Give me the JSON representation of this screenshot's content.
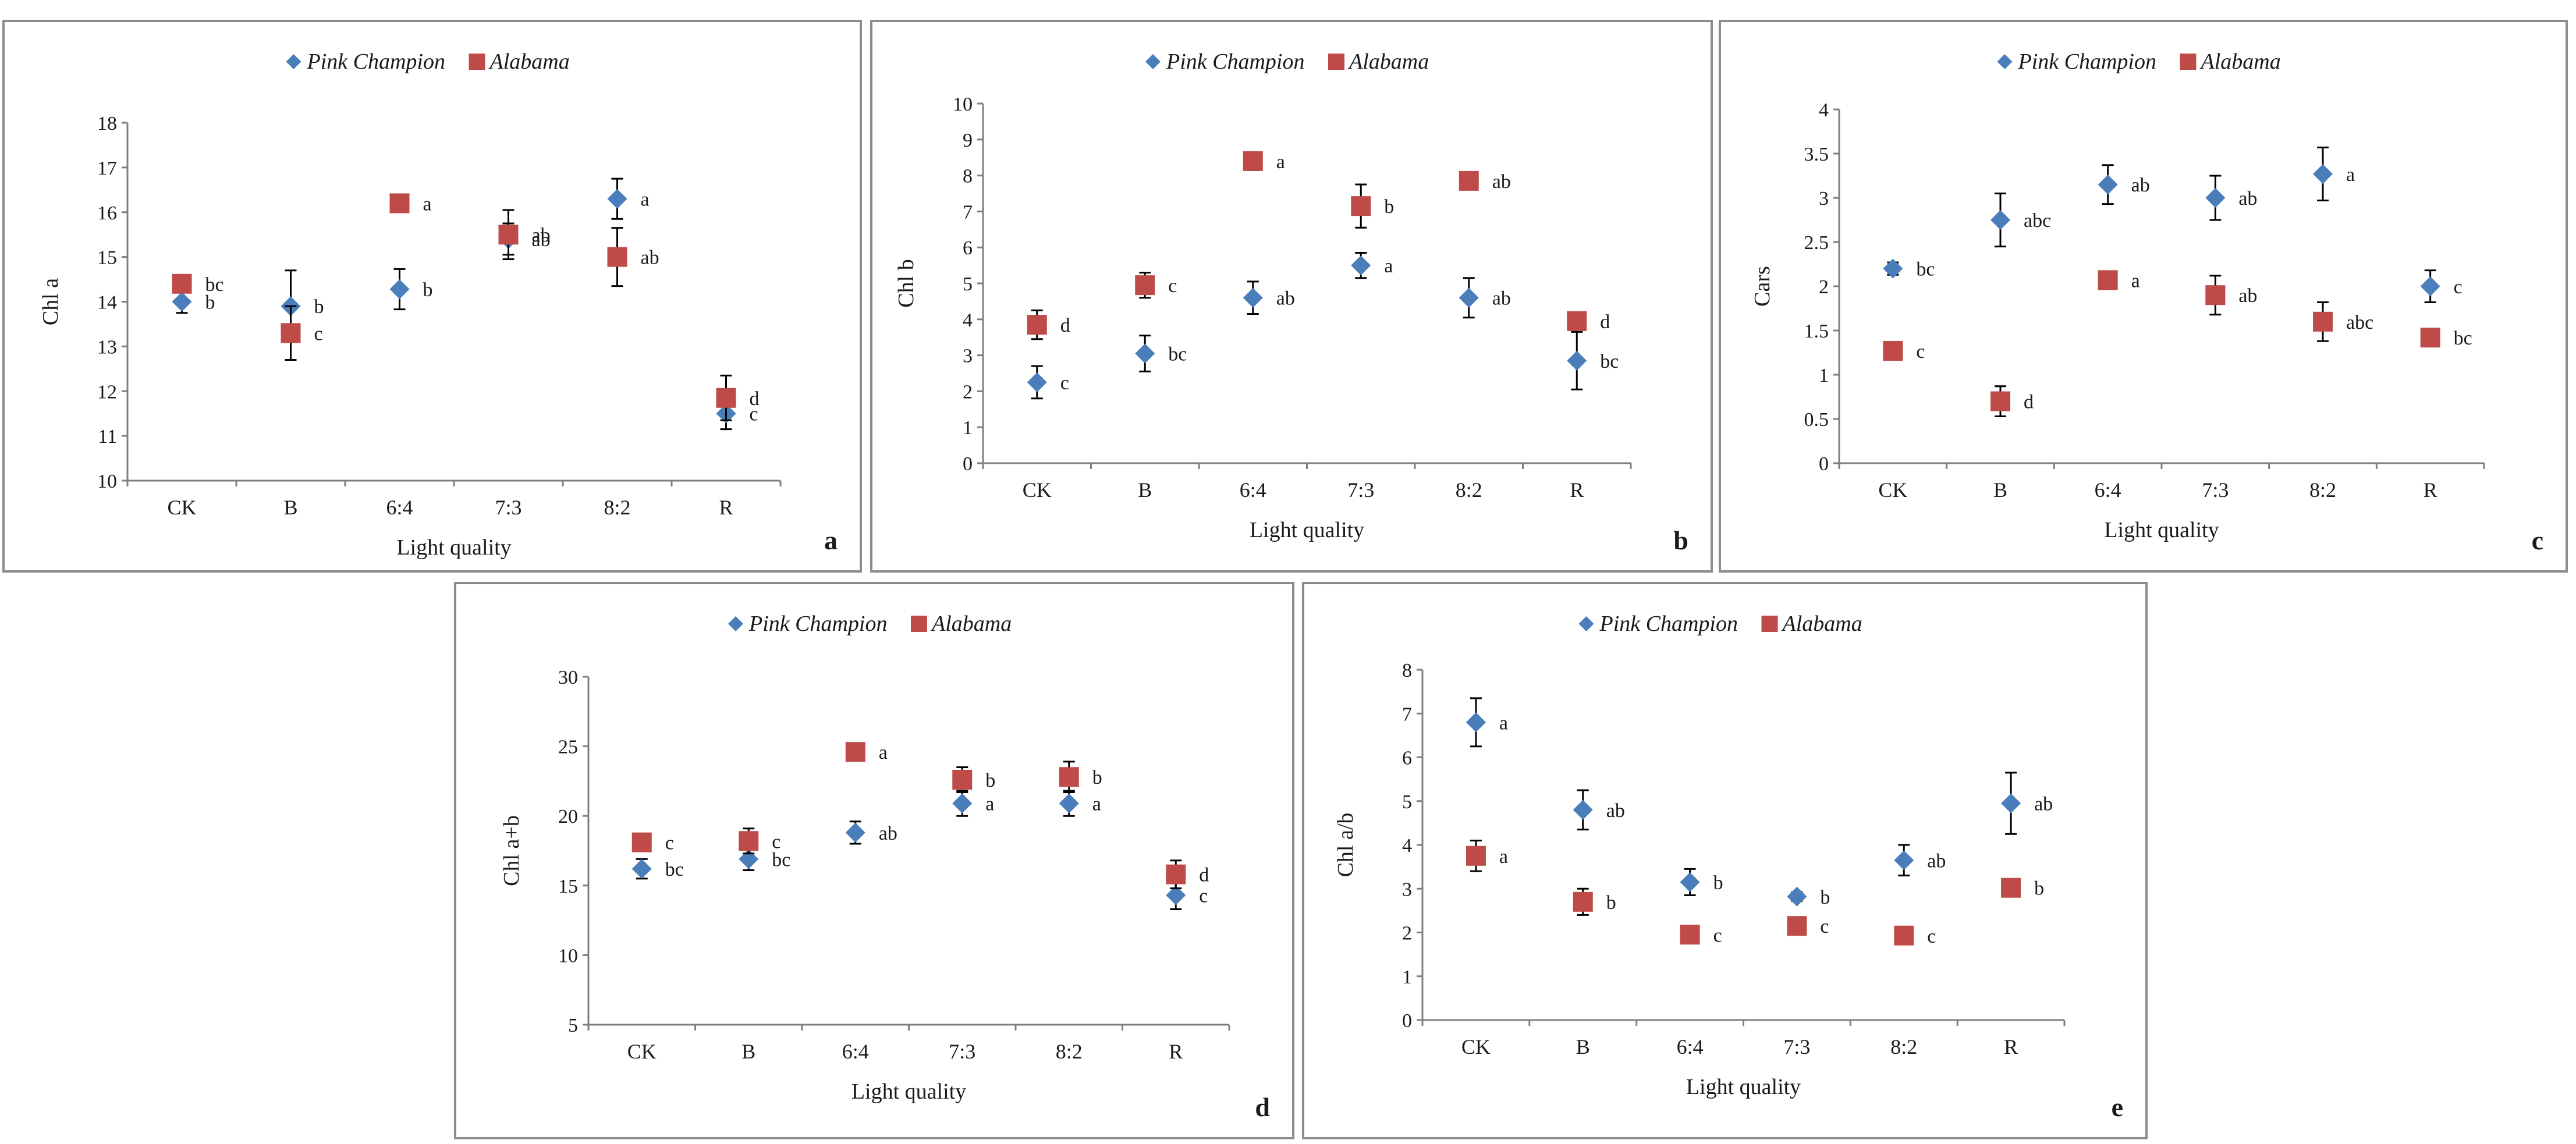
{
  "legend": {
    "series1": "Pink Champion",
    "series2": "Alabama"
  },
  "colors": {
    "series1": "#4a7ebb",
    "series2": "#be4b48",
    "axis": "#7f7f7f",
    "text": "#1a1a1a"
  },
  "chart_data": [
    {
      "type": "scatter",
      "panel": "a",
      "xlabel": "Light quality",
      "ylabel": "Chl a",
      "categories": [
        "CK",
        "B",
        "6:4",
        "7:3",
        "8:2",
        "R"
      ],
      "ylim": [
        10,
        18
      ],
      "yticks": [
        10,
        11,
        12,
        13,
        14,
        15,
        16,
        17,
        18
      ],
      "series": [
        {
          "name": "Pink Champion",
          "values": [
            14.0,
            13.9,
            14.28,
            15.4,
            16.3,
            11.5
          ],
          "errors": [
            0.25,
            0.8,
            0.45,
            0.35,
            0.45,
            0.35
          ],
          "letters": [
            "b",
            "b",
            "b",
            "ab",
            "a",
            "c"
          ]
        },
        {
          "name": "Alabama",
          "values": [
            14.4,
            13.3,
            16.2,
            15.5,
            15.0,
            11.85
          ],
          "errors": [
            0.12,
            0.6,
            0.1,
            0.55,
            0.65,
            0.5
          ],
          "letters": [
            "bc",
            "c",
            "a",
            "ab",
            "ab",
            "d"
          ]
        }
      ]
    },
    {
      "type": "scatter",
      "panel": "b",
      "xlabel": "Light quality",
      "ylabel": "Chl b",
      "categories": [
        "CK",
        "B",
        "6:4",
        "7:3",
        "8:2",
        "R"
      ],
      "ylim": [
        0,
        10
      ],
      "yticks": [
        0,
        1,
        2,
        3,
        4,
        5,
        6,
        7,
        8,
        9,
        10
      ],
      "series": [
        {
          "name": "Pink Champion",
          "values": [
            2.25,
            3.05,
            4.6,
            5.5,
            4.6,
            2.85
          ],
          "errors": [
            0.45,
            0.5,
            0.45,
            0.35,
            0.55,
            0.8
          ],
          "letters": [
            "c",
            "bc",
            "ab",
            "a",
            "ab",
            "bc"
          ]
        },
        {
          "name": "Alabama",
          "values": [
            3.85,
            4.95,
            8.4,
            7.15,
            7.85,
            3.95
          ],
          "errors": [
            0.4,
            0.35,
            0.25,
            0.6,
            0.2,
            0.25
          ],
          "letters": [
            "d",
            "c",
            "a",
            "b",
            "ab",
            "d"
          ]
        }
      ]
    },
    {
      "type": "scatter",
      "panel": "c",
      "xlabel": "Light quality",
      "ylabel": "Cars",
      "categories": [
        "CK",
        "B",
        "6:4",
        "7:3",
        "8:2",
        "R"
      ],
      "ylim": [
        0,
        4
      ],
      "yticks": [
        0,
        0.5,
        1,
        1.5,
        2,
        2.5,
        3,
        3.5,
        4
      ],
      "series": [
        {
          "name": "Pink Champion",
          "values": [
            2.2,
            2.75,
            3.15,
            3.0,
            3.27,
            2.0
          ],
          "errors": [
            0.07,
            0.3,
            0.22,
            0.25,
            0.3,
            0.18
          ],
          "letters": [
            "bc",
            "abc",
            "ab",
            "ab",
            "a",
            "c"
          ]
        },
        {
          "name": "Alabama",
          "values": [
            1.27,
            0.7,
            2.07,
            1.9,
            1.6,
            1.42
          ],
          "errors": [
            0.04,
            0.17,
            0.04,
            0.22,
            0.22,
            0.08
          ],
          "letters": [
            "c",
            "d",
            "a",
            "ab",
            "abc",
            "bc"
          ]
        }
      ]
    },
    {
      "type": "scatter",
      "panel": "d",
      "xlabel": "Light quality",
      "ylabel": "Chl a+b",
      "categories": [
        "CK",
        "B",
        "6:4",
        "7:3",
        "8:2",
        "R"
      ],
      "ylim": [
        5,
        30
      ],
      "yticks": [
        5,
        10,
        15,
        20,
        25,
        30
      ],
      "series": [
        {
          "name": "Pink Champion",
          "values": [
            16.2,
            16.9,
            18.8,
            20.9,
            20.9,
            14.3
          ],
          "errors": [
            0.7,
            0.8,
            0.8,
            0.9,
            0.9,
            1.0
          ],
          "letters": [
            "bc",
            "bc",
            "ab",
            "a",
            "a",
            "c"
          ]
        },
        {
          "name": "Alabama",
          "values": [
            18.1,
            18.2,
            24.6,
            22.6,
            22.8,
            15.8
          ],
          "errors": [
            0.4,
            0.9,
            0.3,
            0.9,
            1.1,
            1.0
          ],
          "letters": [
            "c",
            "c",
            "a",
            "b",
            "b",
            "d"
          ]
        }
      ]
    },
    {
      "type": "scatter",
      "panel": "e",
      "xlabel": "Light quality",
      "ylabel": "Chl a/b",
      "categories": [
        "CK",
        "B",
        "6:4",
        "7:3",
        "8:2",
        "R"
      ],
      "ylim": [
        0,
        8
      ],
      "yticks": [
        0,
        1,
        2,
        3,
        4,
        5,
        6,
        7,
        8
      ],
      "series": [
        {
          "name": "Pink Champion",
          "values": [
            6.8,
            4.8,
            3.15,
            2.82,
            3.65,
            4.95
          ],
          "errors": [
            0.55,
            0.45,
            0.3,
            0.1,
            0.35,
            0.7
          ],
          "letters": [
            "a",
            "ab",
            "b",
            "b",
            "ab",
            "ab"
          ]
        },
        {
          "name": "Alabama",
          "values": [
            3.75,
            2.7,
            1.95,
            2.15,
            1.93,
            3.02
          ],
          "errors": [
            0.35,
            0.3,
            0.05,
            0.05,
            0.05,
            0.05
          ],
          "letters": [
            "a",
            "b",
            "c",
            "c",
            "c",
            "b"
          ]
        }
      ]
    }
  ]
}
